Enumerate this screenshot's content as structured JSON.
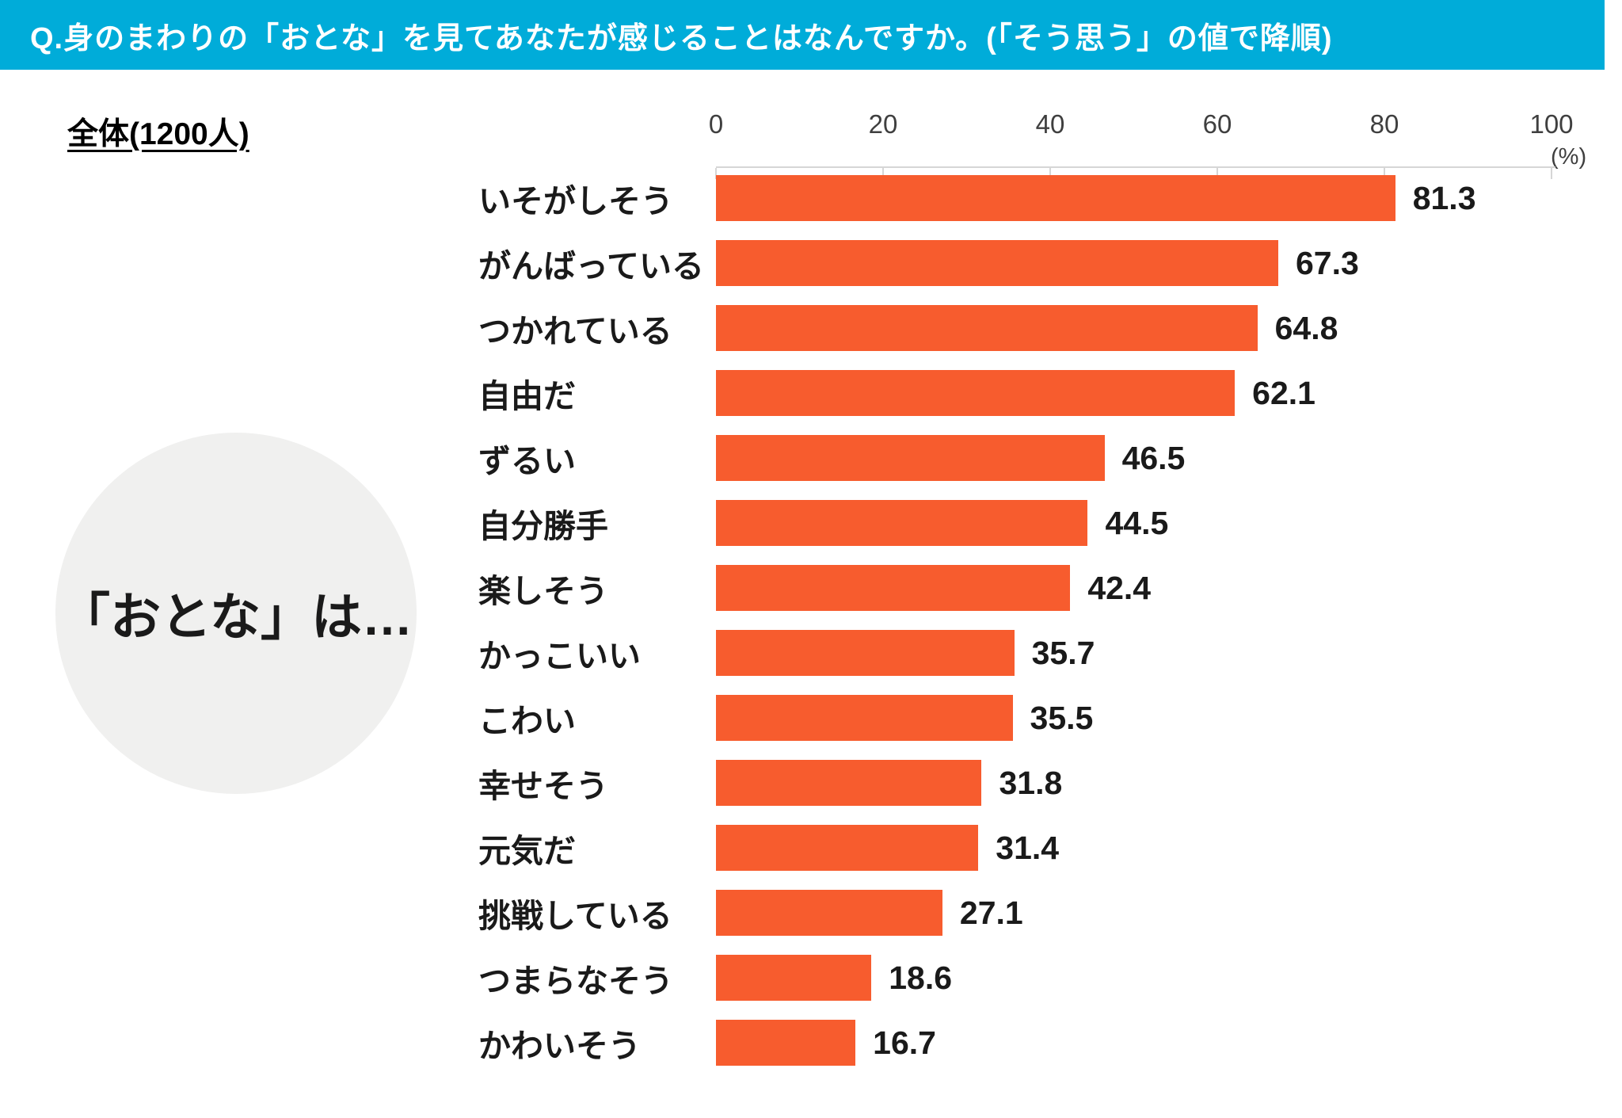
{
  "header": {
    "title": "Q.身のまわりの「おとな」を見てあなたが感じることはなんですか。(「そう思う」の値で降順)",
    "bg_color": "#00ACD9",
    "text_color": "#FFFFFF"
  },
  "sample_label": "全体(1200人)",
  "circle": {
    "text": "「おとな」は…",
    "bg_color": "#F0F0EF"
  },
  "chart_data": {
    "type": "bar",
    "orientation": "horizontal",
    "title": "Q.身のまわりの「おとな」を見てあなたが感じることはなんですか。(「そう思う」の値で降順)",
    "categories": [
      "いそがしそう",
      "がんばっている",
      "つかれている",
      "自由だ",
      "ずるい",
      "自分勝手",
      "楽しそう",
      "かっこいい",
      "こわい",
      "幸せそう",
      "元気だ",
      "挑戦している",
      "つまらなそう",
      "かわいそう"
    ],
    "values": [
      81.3,
      67.3,
      64.8,
      62.1,
      46.5,
      44.5,
      42.4,
      35.7,
      35.5,
      31.8,
      31.4,
      27.1,
      18.6,
      16.7
    ],
    "xlabel": "",
    "ylabel": "",
    "axis": {
      "ticks": [
        0,
        20,
        40,
        60,
        80,
        100
      ],
      "unit_label": "(%)",
      "xlim": [
        0,
        100
      ]
    },
    "bar_color": "#F75C2E",
    "axis_color": "#D6D6D6",
    "grid": false,
    "legend": "none",
    "sort": "descending"
  }
}
